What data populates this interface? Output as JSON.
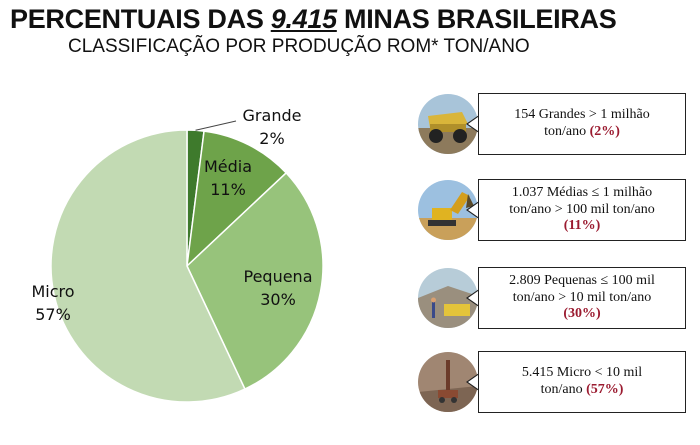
{
  "header": {
    "title_prefix": "PERCENTUAIS DAS ",
    "title_number": "9.415",
    "title_suffix": " MINAS BRASILEIRAS",
    "subtitle": "CLASSIFICAÇÃO POR PRODUÇÃO ROM* TON/ANO"
  },
  "chart_data": {
    "type": "pie",
    "slices": [
      {
        "label": "Grande",
        "value": 2,
        "value_label": "2%",
        "color": "#3e7a2c"
      },
      {
        "label": "Média",
        "value": 11,
        "value_label": "11%",
        "color": "#6ea34a"
      },
      {
        "label": "Pequena",
        "value": 30,
        "value_label": "30%",
        "color": "#97c37b"
      },
      {
        "label": "Micro",
        "value": 57,
        "value_label": "57%",
        "color": "#c2dab3"
      }
    ],
    "start_angle_deg": 0,
    "direction": "clockwise"
  },
  "callouts": [
    {
      "line1": "154 Grandes > 1 milhão",
      "line2": "ton/ano ",
      "pct": "(2%)",
      "line3": ""
    },
    {
      "line1": "1.037 Médias ≤ 1 milhão",
      "line2": "ton/ano  > 100 mil ton/ano",
      "pct": "(11%)",
      "line3": ""
    },
    {
      "line1": "2.809 Pequenas ≤ 100 mil",
      "line2": "ton/ano  > 10 mil ton/ano",
      "pct": "(30%)",
      "line3": ""
    },
    {
      "line1": "5.415 Micro < 10 mil",
      "line2": "ton/ano ",
      "pct": "(57%)",
      "line3": ""
    }
  ],
  "photos": [
    "haul-truck-photo",
    "excavator-photo",
    "quarry-photo",
    "drill-rig-photo"
  ]
}
